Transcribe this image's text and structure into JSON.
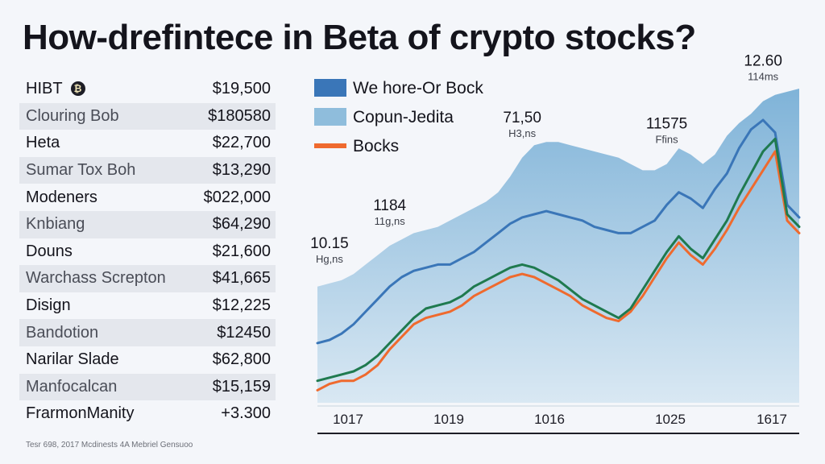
{
  "title": "How-drefintece in Beta of crypto stocks?",
  "table": {
    "rows": [
      {
        "label": "HIBT",
        "value": "$19,500",
        "shaded": false,
        "logo": true
      },
      {
        "label": "Clouring Bob",
        "value": "$180580",
        "shaded": true
      },
      {
        "label": "Heta",
        "value": "$22,700",
        "shaded": false
      },
      {
        "label": "Sumar Tox Boh",
        "value": "$13,290",
        "shaded": true
      },
      {
        "label": "Modeners",
        "value": "$022,000",
        "shaded": false
      },
      {
        "label": "Knbiang",
        "value": "$64,290",
        "shaded": true
      },
      {
        "label": "Douns",
        "value": "$21,600",
        "shaded": false
      },
      {
        "label": "Warchass Screpton",
        "value": "$41,665",
        "shaded": true
      },
      {
        "label": "Disign",
        "value": "$12,225",
        "shaded": false
      },
      {
        "label": "Bandotion",
        "value": "$12450",
        "shaded": true
      },
      {
        "label": "Narilar Slade",
        "value": "$62,800",
        "shaded": false
      },
      {
        "label": "Manfocalcan",
        "value": "$15,159",
        "shaded": true
      },
      {
        "label": "FrarmonManity",
        "value": "+3.300",
        "shaded": false
      }
    ],
    "logo_icon": "hibt-coin-icon"
  },
  "footnote": "Tesr 698, 2017 Mcdinests 4A Mebriel Gensuoo",
  "colors": {
    "area": "#8fbddc",
    "blue_line": "#3a76b8",
    "green_line": "#1f7a4f",
    "orange_line": "#ef6a2e"
  },
  "chart_data": {
    "type": "area",
    "title": "",
    "xlabel": "",
    "ylabel": "",
    "x_ticks": [
      "1017",
      "1019",
      "1016",
      "1025",
      "1617"
    ],
    "x": [
      0,
      1,
      2,
      3,
      4,
      5,
      6,
      7,
      8,
      9,
      10,
      11,
      12,
      13,
      14,
      15,
      16,
      17,
      18,
      19,
      20,
      21,
      22,
      23,
      24,
      25,
      26,
      27,
      28,
      29,
      30,
      31,
      32,
      33,
      34,
      35,
      36,
      37,
      38,
      39,
      40
    ],
    "ylim": [
      0,
      100
    ],
    "grid": false,
    "legend_position": "top-left",
    "series": [
      {
        "name": "Copun-Jedita",
        "style": "area",
        "color": "#8fbddc",
        "values": [
          37,
          38,
          39,
          41,
          44,
          47,
          50,
          52,
          54,
          55,
          56,
          58,
          60,
          62,
          64,
          67,
          72,
          78,
          82,
          83,
          83,
          82,
          81,
          80,
          79,
          78,
          76,
          74,
          74,
          76,
          81,
          79,
          76,
          79,
          85,
          89,
          92,
          96,
          98,
          99,
          100
        ]
      },
      {
        "name": "We hore-Or Bock",
        "style": "line",
        "color": "#3a76b8",
        "values": [
          19,
          20,
          22,
          25,
          29,
          33,
          37,
          40,
          42,
          43,
          44,
          44,
          46,
          48,
          51,
          54,
          57,
          59,
          60,
          61,
          60,
          59,
          58,
          56,
          55,
          54,
          54,
          56,
          58,
          63,
          67,
          65,
          62,
          68,
          73,
          81,
          87,
          90,
          86,
          63,
          59
        ]
      },
      {
        "name": "Bocks",
        "style": "line",
        "color": "#ef6a2e",
        "values": [
          4,
          6,
          7,
          7,
          9,
          12,
          17,
          21,
          25,
          27,
          28,
          29,
          31,
          34,
          36,
          38,
          40,
          41,
          40,
          38,
          36,
          34,
          31,
          29,
          27,
          26,
          29,
          34,
          40,
          46,
          51,
          47,
          44,
          49,
          55,
          62,
          68,
          74,
          80,
          58,
          54
        ]
      },
      {
        "name": "",
        "style": "line",
        "color": "#1f7a4f",
        "values": [
          7,
          8,
          9,
          10,
          12,
          15,
          19,
          23,
          27,
          30,
          31,
          32,
          34,
          37,
          39,
          41,
          43,
          44,
          43,
          41,
          39,
          36,
          33,
          31,
          29,
          27,
          30,
          36,
          42,
          48,
          53,
          49,
          46,
          52,
          58,
          66,
          73,
          80,
          84,
          60,
          56
        ]
      }
    ],
    "annotations": [
      {
        "value": "10.15",
        "sub": "Hg,ns",
        "x": 1
      },
      {
        "value": "1184",
        "sub": "11g,ns",
        "x": 6
      },
      {
        "value": "71,50",
        "sub": "H3,ns",
        "x": 17
      },
      {
        "value": "11575",
        "sub": "Ffins",
        "x": 29
      },
      {
        "value": "12.60",
        "sub": "114ms",
        "x": 37
      }
    ],
    "legend": [
      {
        "label": "We hore-Or Bock",
        "color": "#3a76b8",
        "shape": "swatch"
      },
      {
        "label": "Copun-Jedita",
        "color": "#8fbddc",
        "shape": "swatch"
      },
      {
        "label": "Bocks",
        "color": "#ef6a2e",
        "shape": "line"
      }
    ]
  }
}
